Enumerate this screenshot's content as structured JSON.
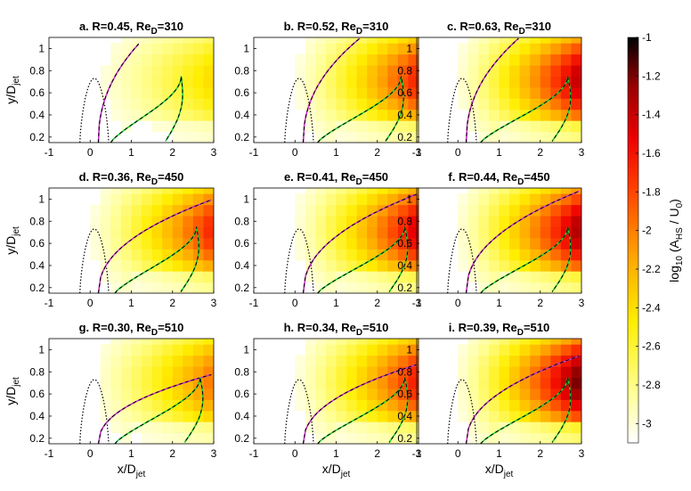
{
  "figure": {
    "xlabel_main": "x/D",
    "xlabel_sub": "jet",
    "ylabel_main": "y/D",
    "ylabel_sub": "jet",
    "xticks": [
      "-1",
      "0",
      "1",
      "2",
      "3"
    ],
    "yticks": [
      "0.2",
      "0.4",
      "0.6",
      "0.8",
      "1"
    ]
  },
  "colorbar": {
    "label_pre": "log",
    "label_sub1": "10",
    "label_mid": " (A",
    "label_sub2": "HS",
    "label_mid2": " / U",
    "label_sub3": "0",
    "label_end": ")",
    "ticks": [
      "-1",
      "-1.2",
      "-1.4",
      "-1.6",
      "-1.8",
      "-2",
      "-2.2",
      "-2.4",
      "-2.6",
      "-2.8",
      "-3"
    ],
    "range": [
      -3.1,
      -1.0
    ],
    "colormap": "hot-reversed"
  },
  "chart_data": [
    {
      "type": "heatmap",
      "panel": "a",
      "title_main": "a. R=0.45, Re",
      "title_sub": "D",
      "title_end": "=310",
      "R": 0.45,
      "Re_D": 310,
      "intensity": 0.35,
      "jet_reach_x": 1.2,
      "jet_peak_y": 1.05,
      "green_start_x": 0.5,
      "green_tip_x": 2.4,
      "xlim": [
        -1,
        3
      ],
      "ylim": [
        0.15,
        1.1
      ]
    },
    {
      "type": "heatmap",
      "panel": "b",
      "title_main": "b. R=0.52, Re",
      "title_sub": "D",
      "title_end": "=310",
      "R": 0.52,
      "Re_D": 310,
      "intensity": 0.7,
      "jet_reach_x": 1.6,
      "jet_peak_y": 1.1,
      "green_start_x": 0.55,
      "green_tip_x": 2.8,
      "xlim": [
        -1,
        3
      ],
      "ylim": [
        0.15,
        1.1
      ]
    },
    {
      "type": "heatmap",
      "panel": "c",
      "title_main": "c. R=0.63, Re",
      "title_sub": "D",
      "title_end": "=310",
      "R": 0.63,
      "Re_D": 310,
      "intensity": 0.85,
      "jet_reach_x": 1.5,
      "jet_peak_y": 1.1,
      "green_start_x": 0.55,
      "green_tip_x": 2.9,
      "xlim": [
        -1,
        3
      ],
      "ylim": [
        0.15,
        1.1
      ]
    },
    {
      "type": "heatmap",
      "panel": "d",
      "title_main": "d. R=0.36, Re",
      "title_sub": "D",
      "title_end": "=450",
      "R": 0.36,
      "Re_D": 450,
      "intensity": 0.7,
      "jet_reach_x": 3.0,
      "jet_peak_y": 1.0,
      "green_start_x": 0.6,
      "green_tip_x": 2.8,
      "xlim": [
        -1,
        3
      ],
      "ylim": [
        0.15,
        1.1
      ]
    },
    {
      "type": "heatmap",
      "panel": "e",
      "title_main": "e. R=0.41, Re",
      "title_sub": "D",
      "title_end": "=450",
      "R": 0.41,
      "Re_D": 450,
      "intensity": 0.8,
      "jet_reach_x": 3.0,
      "jet_peak_y": 1.05,
      "green_start_x": 0.55,
      "green_tip_x": 2.9,
      "xlim": [
        -1,
        3
      ],
      "ylim": [
        0.15,
        1.1
      ]
    },
    {
      "type": "heatmap",
      "panel": "f",
      "title_main": "f. R=0.44, Re",
      "title_sub": "D",
      "title_end": "=450",
      "R": 0.44,
      "Re_D": 450,
      "intensity": 0.88,
      "jet_reach_x": 3.0,
      "jet_peak_y": 1.08,
      "green_start_x": 0.55,
      "green_tip_x": 2.9,
      "xlim": [
        -1,
        3
      ],
      "ylim": [
        0.15,
        1.1
      ]
    },
    {
      "type": "heatmap",
      "panel": "g",
      "title_main": "g. R=0.30, Re",
      "title_sub": "D",
      "title_end": "=510",
      "R": 0.3,
      "Re_D": 510,
      "intensity": 0.55,
      "jet_reach_x": 3.0,
      "jet_peak_y": 0.78,
      "green_start_x": 0.6,
      "green_tip_x": 2.9,
      "xlim": [
        -1,
        3
      ],
      "ylim": [
        0.15,
        1.1
      ]
    },
    {
      "type": "heatmap",
      "panel": "h",
      "title_main": "h. R=0.34, Re",
      "title_sub": "D",
      "title_end": "=510",
      "R": 0.34,
      "Re_D": 510,
      "intensity": 0.72,
      "jet_reach_x": 3.0,
      "jet_peak_y": 0.87,
      "green_start_x": 0.55,
      "green_tip_x": 2.9,
      "xlim": [
        -1,
        3
      ],
      "ylim": [
        0.15,
        1.1
      ]
    },
    {
      "type": "heatmap",
      "panel": "i",
      "title_main": "i. R=0.39, Re",
      "title_sub": "D",
      "title_end": "=510",
      "R": 0.39,
      "Re_D": 510,
      "intensity": 0.95,
      "jet_reach_x": 3.0,
      "jet_peak_y": 0.95,
      "green_start_x": 0.55,
      "green_tip_x": 2.9,
      "xlim": [
        -1,
        3
      ],
      "ylim": [
        0.15,
        1.1
      ]
    }
  ]
}
